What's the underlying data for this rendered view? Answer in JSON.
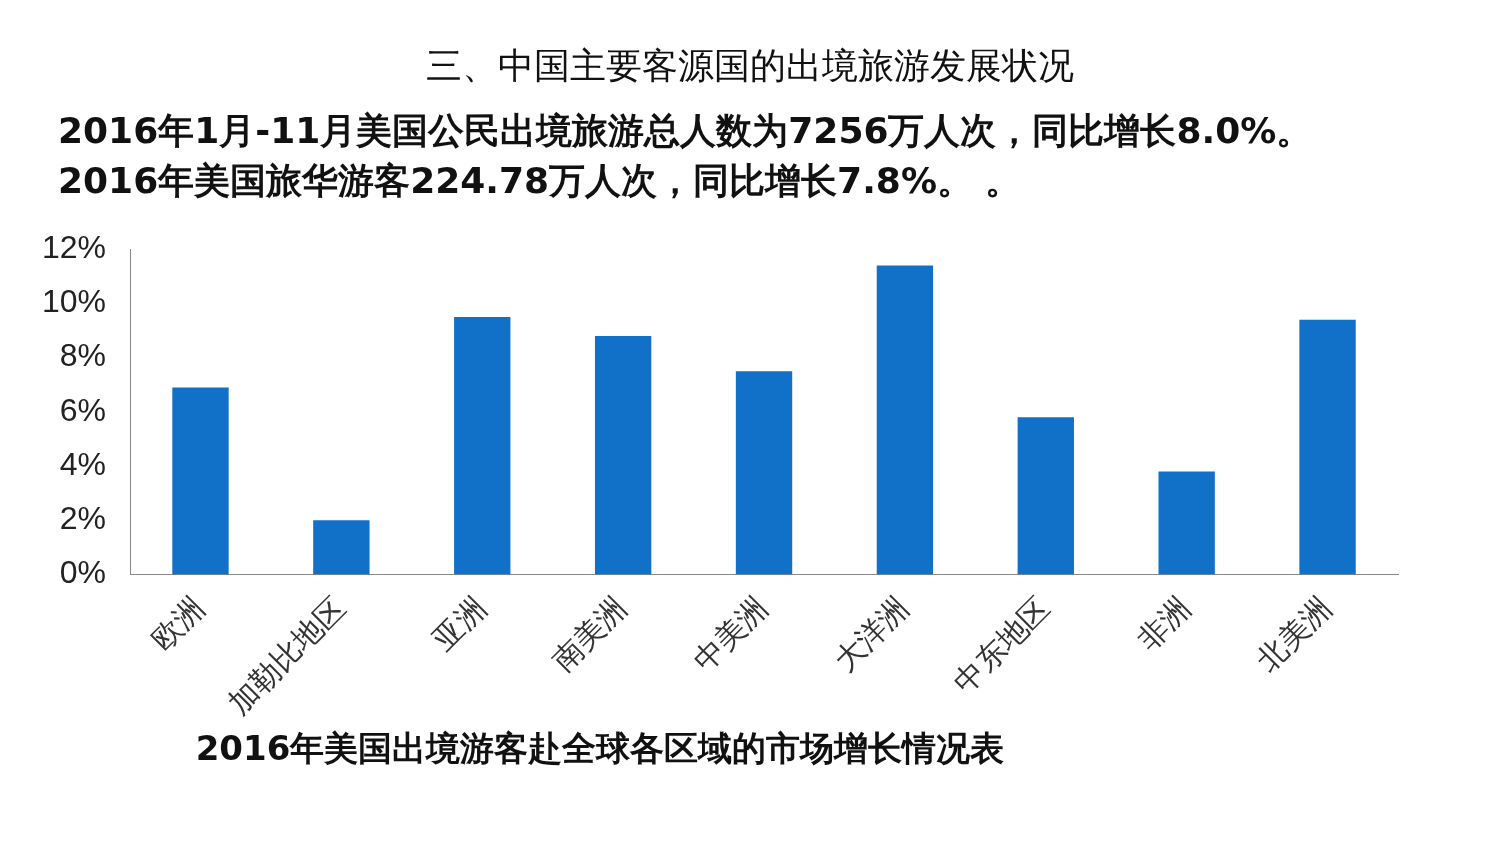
{
  "chart_data": {
    "type": "bar",
    "title": "三、中国主要客源国的出境旅游发展状况",
    "subtitle": "2016年1月-11月美国公民出境旅游总人数为7256万人次，同比增长8.0%。\n2016年美国旅华游客224.78万人次，同比增长7.8%。 。",
    "categories": [
      "欧洲",
      "加勒比地区",
      "亚洲",
      "南美洲",
      "中美洲",
      "大洋洲",
      "中东地区",
      "非洲",
      "北美洲"
    ],
    "values": [
      6.9,
      2.0,
      9.5,
      8.8,
      7.5,
      11.4,
      5.8,
      3.8,
      9.4
    ],
    "color": "#1170c8",
    "ylim": [
      0,
      12
    ],
    "yticks": [
      {
        "value": 0,
        "label": "0%"
      },
      {
        "value": 2,
        "label": "2%"
      },
      {
        "value": 4,
        "label": "4%"
      },
      {
        "value": 6,
        "label": "6%"
      },
      {
        "value": 8,
        "label": "8%"
      },
      {
        "value": 10,
        "label": "10%"
      },
      {
        "value": 12,
        "label": "12%"
      }
    ],
    "grid": false,
    "legend": false,
    "annotations": [
      "2016年美国出境游客赴全球各区域的市场增长情况表"
    ]
  }
}
